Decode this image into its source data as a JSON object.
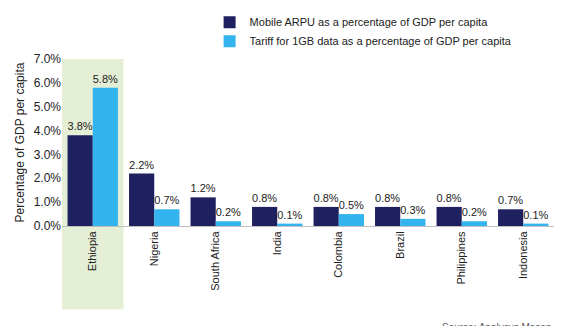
{
  "chart_data": {
    "type": "bar",
    "y_label": "Percentage of GDP per capita",
    "source": "Source: Analysys Mason",
    "categories": [
      "Ethiopia",
      "Nigeria",
      "South Africa",
      "India",
      "Colombia",
      "Brazil",
      "Philippines",
      "Indonesia"
    ],
    "series": [
      {
        "name": "Mobile ARPU as a percentage of GDP per capita",
        "color": "#1f2060",
        "values": [
          3.8,
          2.2,
          1.2,
          0.8,
          0.8,
          0.8,
          0.8,
          0.7
        ],
        "value_labels": [
          "3.8%",
          "2.2%",
          "1.2%",
          "0.8%",
          "0.8%",
          "0.8%",
          "0.8%",
          "0.7%"
        ]
      },
      {
        "name": "Tariff for 1GB data as a percentage of GDP per capita",
        "color": "#33b4ee",
        "values": [
          5.8,
          0.7,
          0.2,
          0.1,
          0.5,
          0.3,
          0.2,
          0.1
        ],
        "value_labels": [
          "5.8%",
          "0.7%",
          "0.2%",
          "0.1%",
          "0.5%",
          "0.3%",
          "0.2%",
          "0.1%"
        ]
      }
    ],
    "ylim": [
      0,
      7
    ],
    "yticks": [
      {
        "value": 0,
        "label": "0.0%"
      },
      {
        "value": 1,
        "label": "1.0%"
      },
      {
        "value": 2,
        "label": "2.0%"
      },
      {
        "value": 3,
        "label": "3.0%"
      },
      {
        "value": 4,
        "label": "4.0%"
      },
      {
        "value": 5,
        "label": "5.0%"
      },
      {
        "value": 6,
        "label": "6.0%"
      },
      {
        "value": 7,
        "label": "7.0%"
      }
    ],
    "grid": false,
    "legend": "top right",
    "data_labels": true
  }
}
